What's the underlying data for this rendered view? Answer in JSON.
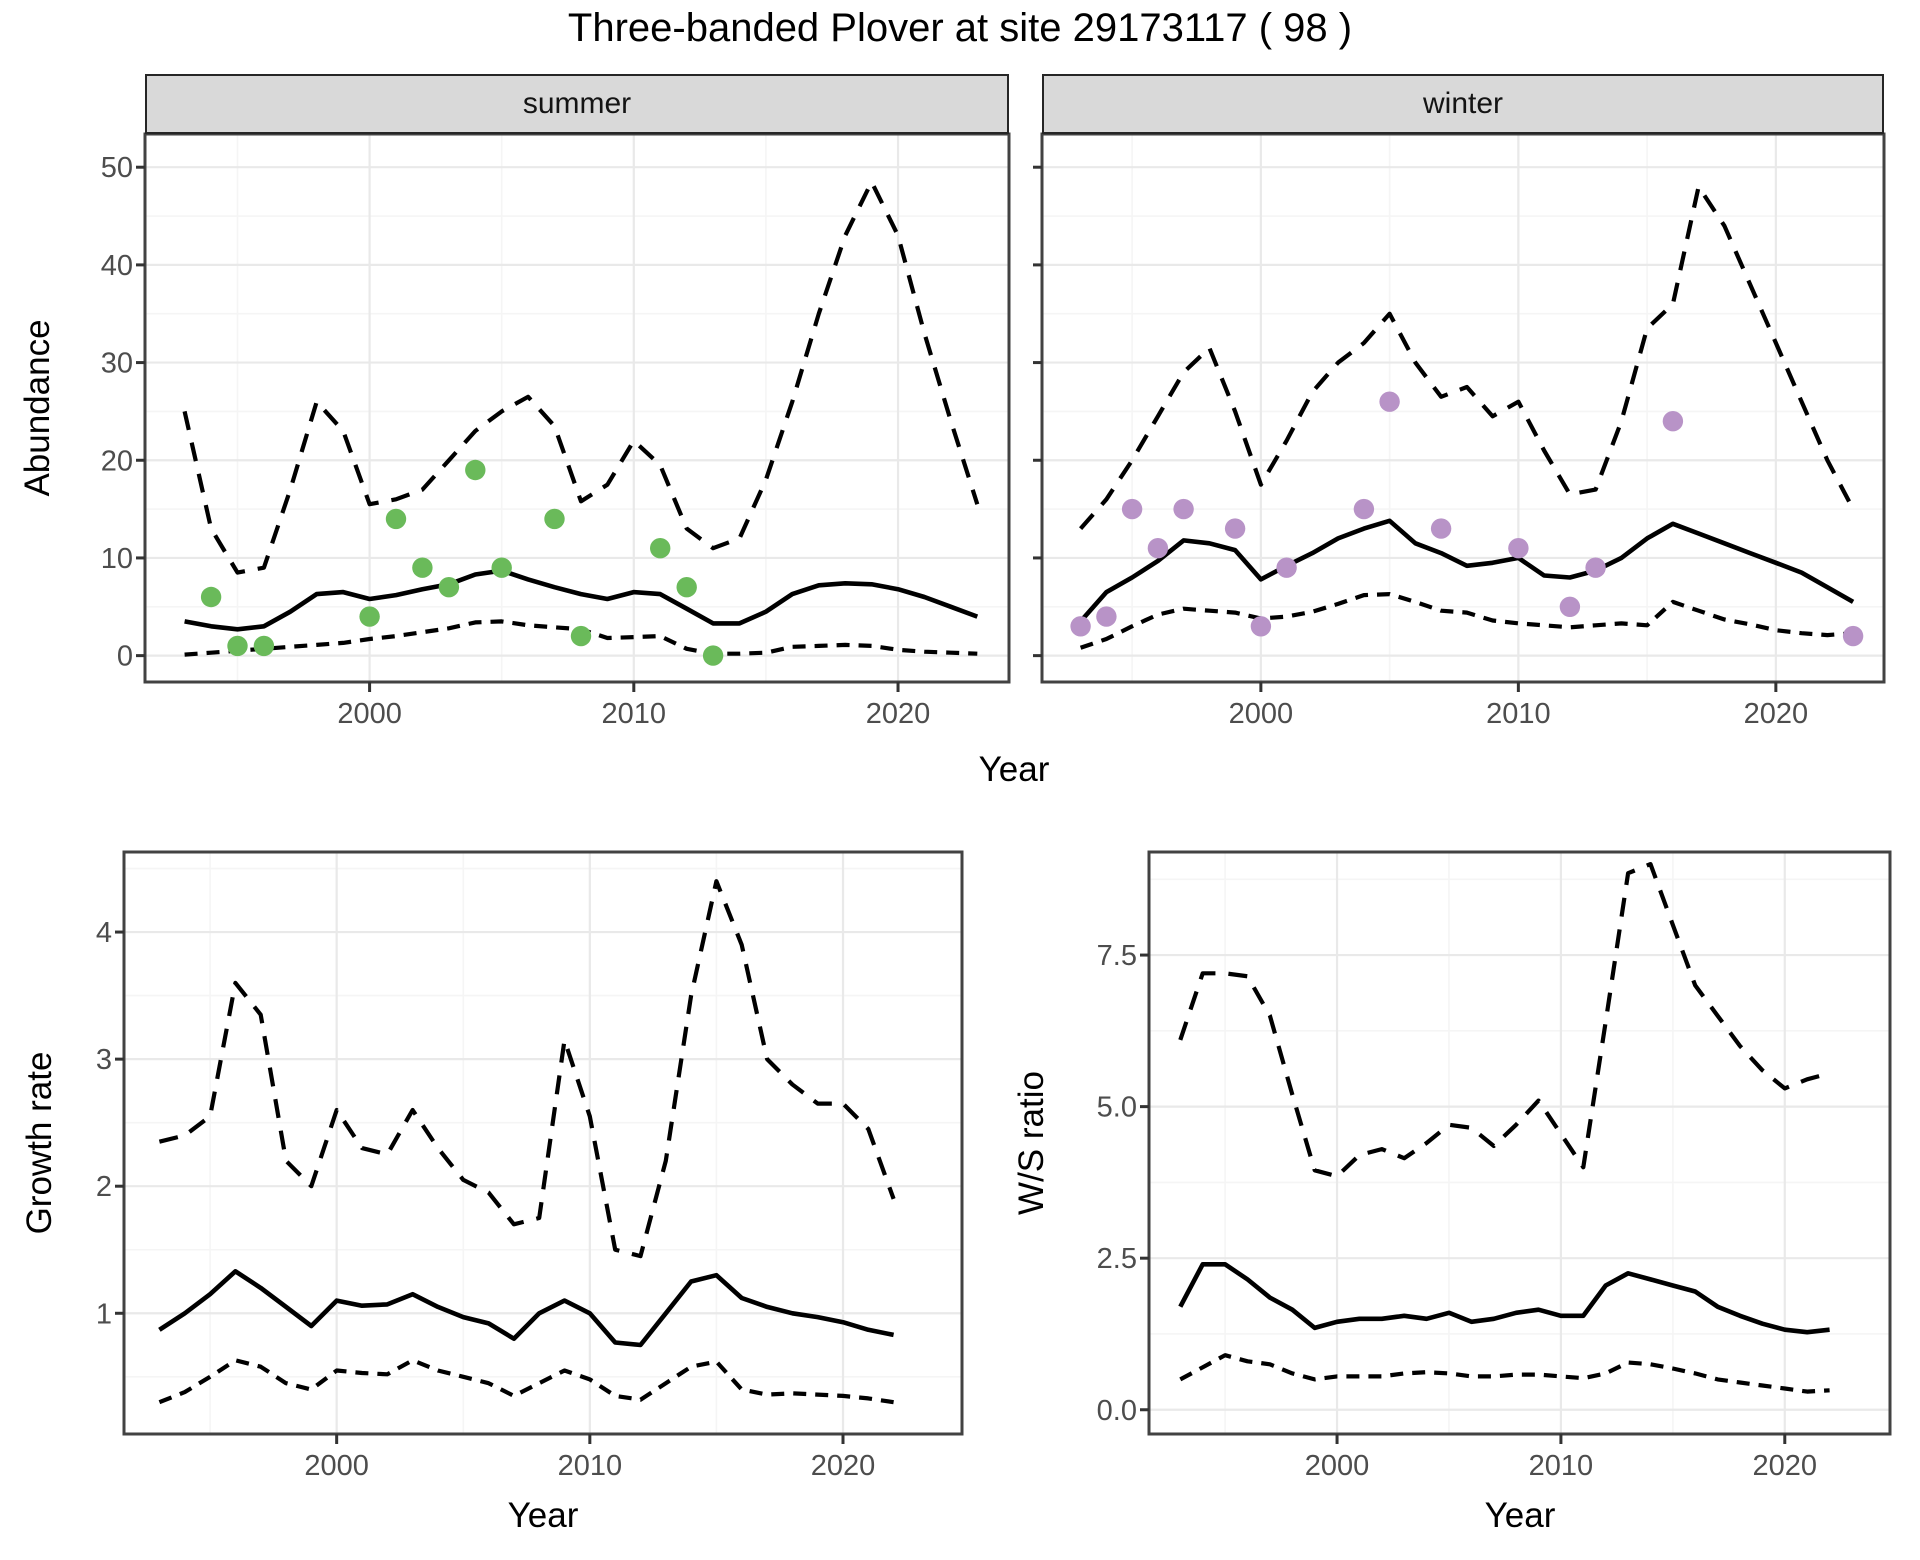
{
  "title": "Three-banded Plover at site 29173117 ( 98 )",
  "facets": {
    "summer": "summer",
    "winter": "winter"
  },
  "axes": {
    "x_label": "Year",
    "abundance_label": "Abundance",
    "growth_label": "Growth rate",
    "ws_label": "W/S ratio"
  },
  "colors": {
    "summer_point": "#6aba5a",
    "winter_point": "#b893c7",
    "line": "#000000",
    "strip_bg": "#d9d9d9",
    "strip_border": "#262626",
    "panel_border": "#424242",
    "grid_major": "#e9e9e9",
    "grid_minor": "#f5f5f5",
    "tick_mark": "#333333",
    "tick_text": "#4d4d4d"
  },
  "chart_data": [
    {
      "id": "abundance_summer",
      "type": "line",
      "facet": "summer",
      "title": "summer",
      "xlabel": "Year",
      "ylabel": "Abundance",
      "xlim": [
        1991.5,
        2024.2
      ],
      "ylim": [
        -2.7,
        53.4
      ],
      "xticks": [
        2000,
        2010,
        2020
      ],
      "xtick_labels": [
        "2000",
        "2010",
        "2020"
      ],
      "xticks_minor": [
        1995,
        2005,
        2015
      ],
      "yticks": [
        0,
        10,
        20,
        30,
        40,
        50
      ],
      "ytick_labels": [
        "0",
        "10",
        "20",
        "30",
        "40",
        "50"
      ],
      "yticks_minor": [
        5,
        15,
        25,
        35,
        45
      ],
      "x": [
        1993,
        1994,
        1995,
        1996,
        1997,
        1998,
        1999,
        2000,
        2001,
        2002,
        2003,
        2004,
        2005,
        2006,
        2007,
        2008,
        2009,
        2010,
        2011,
        2012,
        2013,
        2014,
        2015,
        2016,
        2017,
        2018,
        2019,
        2020,
        2021,
        2022,
        2023
      ],
      "series": [
        {
          "name": "upper_ci",
          "style": "dashed",
          "dash": [
            19,
            13
          ],
          "values": [
            25,
            13,
            8.5,
            9,
            17,
            26,
            23,
            15.5,
            16,
            17,
            20,
            23,
            25,
            26.5,
            23.5,
            15.8,
            17.5,
            22,
            19.5,
            13,
            11,
            12,
            18,
            26,
            35,
            43,
            48.5,
            43,
            33,
            24,
            15.5
          ]
        },
        {
          "name": "lower_ci",
          "style": "dashed",
          "dash": [
            13,
            9
          ],
          "values": [
            0.1,
            0.3,
            0.5,
            0.7,
            0.9,
            1.1,
            1.3,
            1.7,
            2,
            2.4,
            2.8,
            3.4,
            3.5,
            3.1,
            2.9,
            2.7,
            1.8,
            1.9,
            2,
            0.7,
            0.2,
            0.2,
            0.3,
            0.9,
            1,
            1.1,
            1,
            0.6,
            0.4,
            0.3,
            0.2
          ]
        },
        {
          "name": "median",
          "style": "solid",
          "values": [
            3.5,
            3,
            2.7,
            3,
            4.5,
            6.3,
            6.5,
            5.8,
            6.2,
            6.8,
            7.3,
            8.3,
            8.7,
            7.8,
            7,
            6.3,
            5.8,
            6.5,
            6.3,
            4.8,
            3.3,
            3.3,
            4.5,
            6.3,
            7.2,
            7.4,
            7.3,
            6.8,
            6,
            5,
            4
          ]
        }
      ],
      "points": {
        "name": "observed_abundance_summer",
        "color_key": "summer_point",
        "xy": [
          [
            1994,
            6
          ],
          [
            1995,
            1
          ],
          [
            1996,
            1
          ],
          [
            2000,
            4
          ],
          [
            2001,
            14
          ],
          [
            2002,
            9
          ],
          [
            2003,
            7
          ],
          [
            2004,
            19
          ],
          [
            2005,
            9
          ],
          [
            2007,
            14
          ],
          [
            2008,
            2
          ],
          [
            2011,
            11
          ],
          [
            2012,
            7
          ],
          [
            2013,
            0
          ]
        ]
      }
    },
    {
      "id": "abundance_winter",
      "type": "line",
      "facet": "winter",
      "title": "winter",
      "xlabel": "Year",
      "ylabel": "Abundance",
      "xlim": [
        1991.5,
        2024.2
      ],
      "ylim": [
        -2.7,
        53.4
      ],
      "xticks": [
        2000,
        2010,
        2020
      ],
      "xtick_labels": [
        "2000",
        "2010",
        "2020"
      ],
      "xticks_minor": [
        1995,
        2005,
        2015
      ],
      "yticks": [
        0,
        10,
        20,
        30,
        40,
        50
      ],
      "ytick_labels": [
        "0",
        "10",
        "20",
        "30",
        "40",
        "50"
      ],
      "yticks_minor": [
        5,
        15,
        25,
        35,
        45
      ],
      "x": [
        1993,
        1994,
        1995,
        1996,
        1997,
        1998,
        1999,
        2000,
        2001,
        2002,
        2003,
        2004,
        2005,
        2006,
        2007,
        2008,
        2009,
        2010,
        2011,
        2012,
        2013,
        2014,
        2015,
        2016,
        2017,
        2018,
        2019,
        2020,
        2021,
        2022,
        2023
      ],
      "series": [
        {
          "name": "upper_ci",
          "style": "dashed",
          "dash": [
            19,
            13
          ],
          "values": [
            13,
            16,
            20,
            24.5,
            29,
            31.5,
            25,
            17.5,
            22,
            27,
            30,
            32,
            35,
            30,
            26.5,
            27.5,
            24.5,
            26,
            21,
            16.5,
            17,
            24,
            33.5,
            36,
            48,
            44,
            38,
            32,
            26,
            20,
            15
          ]
        },
        {
          "name": "lower_ci",
          "style": "dashed",
          "dash": [
            13,
            9
          ],
          "values": [
            0.8,
            1.7,
            3,
            4.2,
            4.8,
            4.6,
            4.4,
            3.8,
            4,
            4.5,
            5.3,
            6.2,
            6.3,
            5.5,
            4.6,
            4.4,
            3.6,
            3.3,
            3.1,
            2.9,
            3.1,
            3.3,
            3.1,
            5.5,
            4.6,
            3.7,
            3.2,
            2.6,
            2.3,
            2.1,
            2.3
          ]
        },
        {
          "name": "median",
          "style": "solid",
          "values": [
            3.5,
            6.5,
            8,
            9.7,
            11.8,
            11.5,
            10.8,
            7.8,
            9.2,
            10.5,
            12,
            13,
            13.8,
            11.5,
            10.5,
            9.2,
            9.5,
            10,
            8.2,
            8,
            8.7,
            10,
            12,
            13.5,
            12.5,
            11.5,
            10.5,
            9.5,
            8.5,
            7,
            5.5
          ]
        }
      ],
      "points": {
        "name": "observed_abundance_winter",
        "color_key": "winter_point",
        "xy": [
          [
            1993,
            3
          ],
          [
            1994,
            4
          ],
          [
            1995,
            15
          ],
          [
            1996,
            11
          ],
          [
            1997,
            15
          ],
          [
            1999,
            13
          ],
          [
            2000,
            3
          ],
          [
            2001,
            9
          ],
          [
            2004,
            15
          ],
          [
            2005,
            26
          ],
          [
            2007,
            13
          ],
          [
            2010,
            11
          ],
          [
            2012,
            5
          ],
          [
            2013,
            9
          ],
          [
            2016,
            24
          ],
          [
            2023,
            2
          ]
        ]
      }
    },
    {
      "id": "growth_rate",
      "type": "line",
      "title": "",
      "xlabel": "Year",
      "ylabel": "Growth rate",
      "xlim": [
        1991.6,
        2024.7
      ],
      "ylim": [
        0.05,
        4.63
      ],
      "xticks": [
        2000,
        2010,
        2020
      ],
      "xtick_labels": [
        "2000",
        "2010",
        "2020"
      ],
      "xticks_minor": [
        1995,
        2005,
        2015
      ],
      "yticks": [
        1,
        2,
        3,
        4
      ],
      "ytick_labels": [
        "1",
        "2",
        "3",
        "4"
      ],
      "yticks_minor": [
        0.5,
        1.5,
        2.5,
        3.5,
        4.5
      ],
      "x": [
        1993,
        1994,
        1995,
        1996,
        1997,
        1998,
        1999,
        2000,
        2001,
        2002,
        2003,
        2004,
        2005,
        2006,
        2007,
        2008,
        2009,
        2010,
        2011,
        2012,
        2013,
        2014,
        2015,
        2016,
        2017,
        2018,
        2019,
        2020,
        2021,
        2022
      ],
      "series": [
        {
          "name": "upper_ci",
          "style": "dashed",
          "dash": [
            19,
            13
          ],
          "values": [
            2.35,
            2.4,
            2.55,
            3.6,
            3.35,
            2.2,
            2.0,
            2.6,
            2.3,
            2.25,
            2.6,
            2.3,
            2.05,
            1.95,
            1.7,
            1.75,
            3.15,
            2.55,
            1.5,
            1.45,
            2.2,
            3.5,
            4.4,
            3.9,
            3.0,
            2.8,
            2.65,
            2.65,
            2.45,
            1.9
          ]
        },
        {
          "name": "lower_ci",
          "style": "dashed",
          "dash": [
            13,
            9
          ],
          "values": [
            0.3,
            0.38,
            0.5,
            0.63,
            0.58,
            0.45,
            0.4,
            0.55,
            0.53,
            0.52,
            0.63,
            0.55,
            0.5,
            0.45,
            0.35,
            0.45,
            0.55,
            0.48,
            0.35,
            0.32,
            0.45,
            0.58,
            0.62,
            0.4,
            0.36,
            0.37,
            0.36,
            0.35,
            0.33,
            0.3
          ]
        },
        {
          "name": "median",
          "style": "solid",
          "values": [
            0.87,
            1.0,
            1.15,
            1.33,
            1.2,
            1.05,
            0.9,
            1.1,
            1.06,
            1.07,
            1.15,
            1.05,
            0.97,
            0.92,
            0.8,
            1.0,
            1.1,
            1.0,
            0.77,
            0.75,
            1.0,
            1.25,
            1.3,
            1.12,
            1.05,
            1.0,
            0.97,
            0.93,
            0.87,
            0.83
          ]
        }
      ]
    },
    {
      "id": "ws_ratio",
      "type": "line",
      "title": "",
      "xlabel": "Year",
      "ylabel": "W/S ratio",
      "xlim": [
        1991.6,
        2024.7
      ],
      "ylim": [
        -0.4,
        9.2
      ],
      "xticks": [
        2000,
        2010,
        2020
      ],
      "xtick_labels": [
        "2000",
        "2010",
        "2020"
      ],
      "xticks_minor": [
        1995,
        2005,
        2015
      ],
      "yticks": [
        0,
        2.5,
        5,
        7.5
      ],
      "ytick_labels": [
        "0.0",
        "2.5",
        "5.0",
        "7.5"
      ],
      "yticks_minor": [
        1.25,
        3.75,
        6.25,
        8.75
      ],
      "x": [
        1993,
        1994,
        1995,
        1996,
        1997,
        1998,
        1999,
        2000,
        2001,
        2002,
        2003,
        2004,
        2005,
        2006,
        2007,
        2008,
        2009,
        2010,
        2011,
        2012,
        2013,
        2014,
        2015,
        2016,
        2017,
        2018,
        2019,
        2020,
        2021,
        2022
      ],
      "series": [
        {
          "name": "upper_ci",
          "style": "dashed",
          "dash": [
            19,
            13
          ],
          "values": [
            6.1,
            7.2,
            7.2,
            7.15,
            6.5,
            5.2,
            3.95,
            3.85,
            4.2,
            4.3,
            4.15,
            4.4,
            4.7,
            4.65,
            4.35,
            4.7,
            5.1,
            4.55,
            4.0,
            6.4,
            8.85,
            9.0,
            8.0,
            7.0,
            6.5,
            6.0,
            5.6,
            5.3,
            5.45,
            5.55
          ]
        },
        {
          "name": "lower_ci",
          "style": "dashed",
          "dash": [
            13,
            9
          ],
          "values": [
            0.5,
            0.7,
            0.9,
            0.8,
            0.75,
            0.6,
            0.5,
            0.55,
            0.55,
            0.55,
            0.6,
            0.62,
            0.6,
            0.55,
            0.55,
            0.58,
            0.58,
            0.55,
            0.52,
            0.6,
            0.78,
            0.75,
            0.68,
            0.6,
            0.5,
            0.45,
            0.4,
            0.35,
            0.3,
            0.32
          ]
        },
        {
          "name": "median",
          "style": "solid",
          "values": [
            1.7,
            2.4,
            2.4,
            2.15,
            1.85,
            1.65,
            1.35,
            1.45,
            1.5,
            1.5,
            1.55,
            1.5,
            1.6,
            1.45,
            1.5,
            1.6,
            1.65,
            1.55,
            1.55,
            2.05,
            2.25,
            2.15,
            2.05,
            1.95,
            1.7,
            1.55,
            1.42,
            1.32,
            1.28,
            1.32
          ]
        }
      ]
    }
  ]
}
